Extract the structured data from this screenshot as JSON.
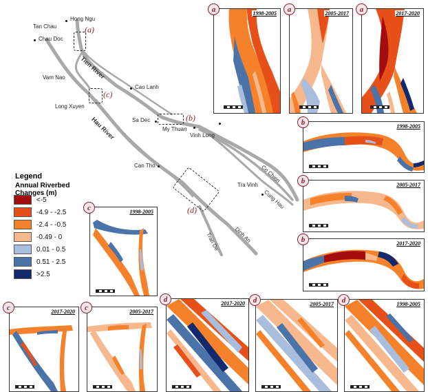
{
  "towns": {
    "hong_ngu": "Hong Ngu",
    "tan_chau": "Tan Chau",
    "chau_doc": "Chau Doc",
    "vam_nao": "Vam Nao",
    "long_xuyen": "Long Xuyen",
    "cao_lanh": "Cao Lanh",
    "sa_dec": "Sa Dec",
    "my_thuan": "My Thuan",
    "vinh_long": "Vinh Long",
    "can_tho": "Can Tho",
    "tra_vinh": "Tra Vinh"
  },
  "rivers": {
    "tien": "Tien River",
    "hau": "Hau River"
  },
  "branches": {
    "co_chien": "Co Chien",
    "cung_hau": "Cung Hau",
    "dinh_an": "Dinh An",
    "tran_de": "Tran De"
  },
  "site_labels": {
    "a": "(a)",
    "b": "(b)",
    "c": "(c)",
    "d": "(d)"
  },
  "legend": {
    "title": "Legend",
    "subtitle": "Annual Riverbed Changes (m)",
    "classes": [
      {
        "label": "<-5",
        "color": "#a30d0d"
      },
      {
        "label": "-4.9 - -2.5",
        "color": "#e8501a"
      },
      {
        "label": "-2.4 - -0.5",
        "color": "#f5822a"
      },
      {
        "label": "-0.49 - 0",
        "color": "#f8b88e"
      },
      {
        "label": "0.01 - 0.5",
        "color": "#a8bedc"
      },
      {
        "label": "0.51 - 2.5",
        "color": "#4a73a8"
      },
      {
        "label": ">2.5",
        "color": "#13296e"
      }
    ]
  },
  "panels": {
    "a1": {
      "letter": "a",
      "period": "1998-2005"
    },
    "a2": {
      "letter": "a",
      "period": "2005-2017"
    },
    "a3": {
      "letter": "a",
      "period": "2017-2020"
    },
    "b1": {
      "letter": "b",
      "period": "1998-2005"
    },
    "b2": {
      "letter": "b",
      "period": "2005-2017"
    },
    "b3": {
      "letter": "b",
      "period": "2017-2020"
    },
    "c1": {
      "letter": "c",
      "period": "1998-2005"
    },
    "c2": {
      "letter": "c",
      "period": "2017-2020"
    },
    "c3": {
      "letter": "c",
      "period": "2005-2017"
    },
    "d1": {
      "letter": "d",
      "period": "2017-2020"
    },
    "d2": {
      "letter": "d",
      "period": "2005-2017"
    },
    "d3": {
      "letter": "d",
      "period": "1998-2005"
    }
  }
}
